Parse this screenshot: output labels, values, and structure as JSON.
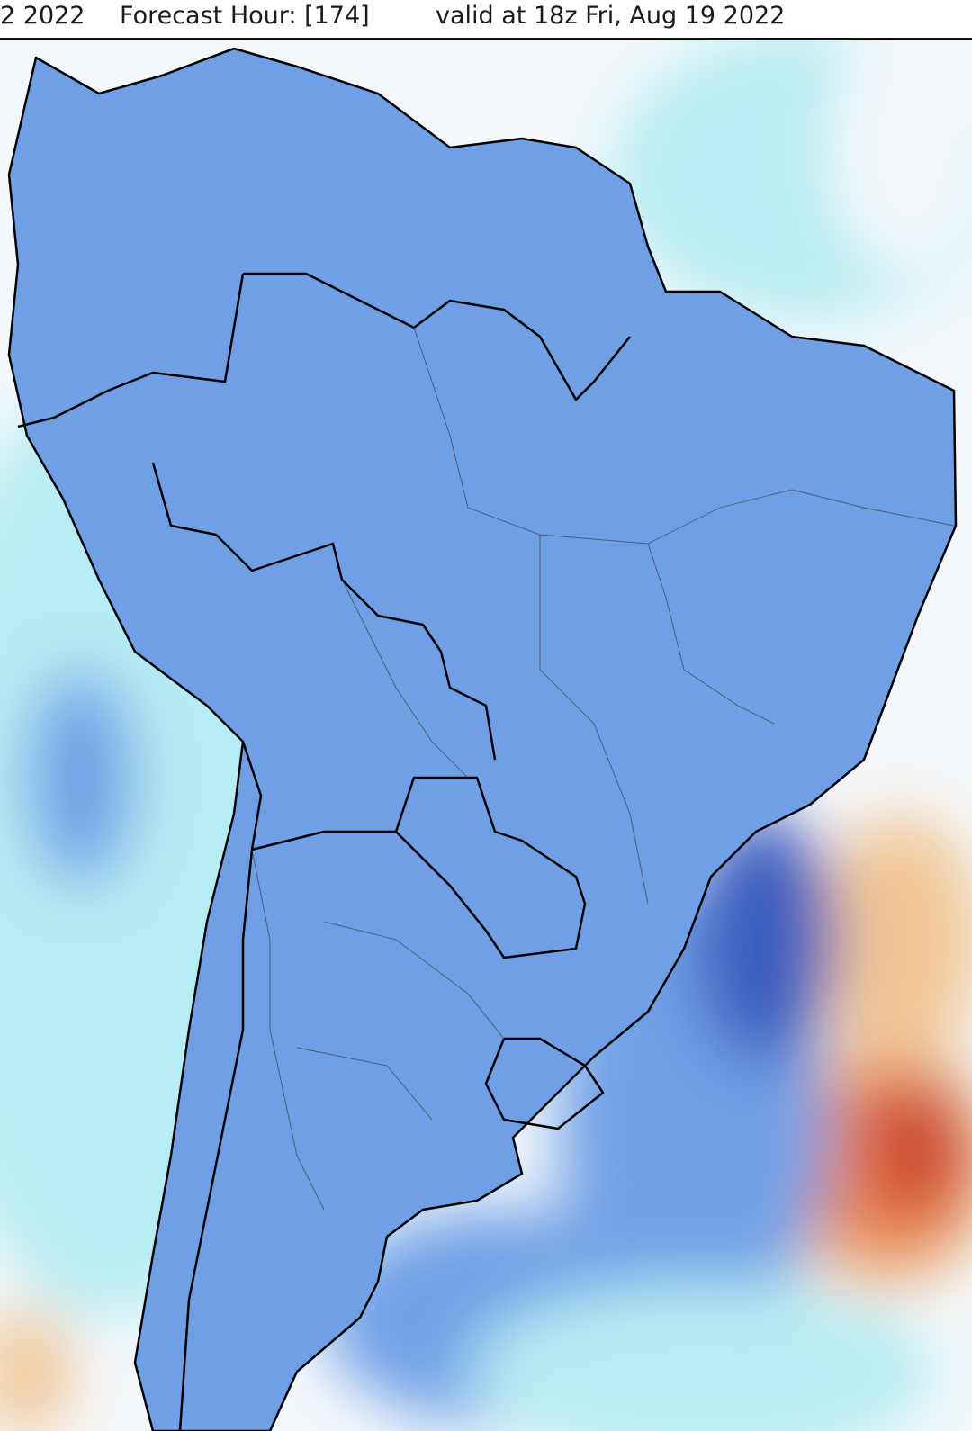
{
  "header": {
    "run_date_fragment": "2 2022",
    "forecast_hour_label": "Forecast Hour: [174]",
    "valid_time_label": "valid at 18z Fri, Aug 19 2022"
  },
  "map": {
    "colors": {
      "very_cold": "#8a48d8",
      "cold_purple": "#6a4cc8",
      "cold_blue": "#3e5fbf",
      "cool_blue": "#6fa0e6",
      "light_cyan": "#b6ecf3",
      "neutral": "#f4f8fb",
      "warm_tan": "#f2c694",
      "warm_orange": "#e9874f",
      "hot_red": "#cd4a36",
      "border": "#000000"
    }
  }
}
